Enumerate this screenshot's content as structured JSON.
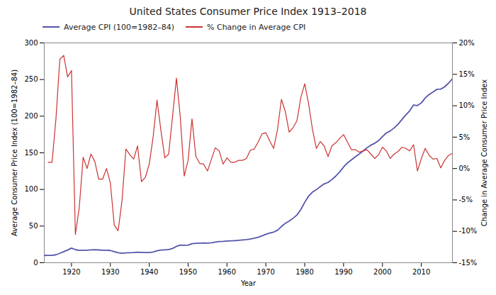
{
  "chart_data": {
    "type": "line",
    "title": "United States Consumer Price Index 1913–2018",
    "xlabel": "Year",
    "ylabel": "Average Consumer Price Index (100=1982–84)",
    "y2label": "Change in Average Consumer Price Index",
    "x": [
      1913,
      1914,
      1915,
      1916,
      1917,
      1918,
      1919,
      1920,
      1921,
      1922,
      1923,
      1924,
      1925,
      1926,
      1927,
      1928,
      1929,
      1930,
      1931,
      1932,
      1933,
      1934,
      1935,
      1936,
      1937,
      1938,
      1939,
      1940,
      1941,
      1942,
      1943,
      1944,
      1945,
      1946,
      1947,
      1948,
      1949,
      1950,
      1951,
      1952,
      1953,
      1954,
      1955,
      1956,
      1957,
      1958,
      1959,
      1960,
      1961,
      1962,
      1963,
      1964,
      1965,
      1966,
      1967,
      1968,
      1969,
      1970,
      1971,
      1972,
      1973,
      1974,
      1975,
      1976,
      1977,
      1978,
      1979,
      1980,
      1981,
      1982,
      1983,
      1984,
      1985,
      1986,
      1987,
      1988,
      1989,
      1990,
      1991,
      1992,
      1993,
      1994,
      1995,
      1996,
      1997,
      1998,
      1999,
      2000,
      2001,
      2002,
      2003,
      2004,
      2005,
      2006,
      2007,
      2008,
      2009,
      2010,
      2011,
      2012,
      2013,
      2014,
      2015,
      2016,
      2017,
      2018
    ],
    "series": [
      {
        "name": "Average CPI (100=1982–84)",
        "color": "#5555aa",
        "values": [
          9.9,
          10.0,
          10.1,
          10.9,
          12.8,
          15.1,
          17.3,
          20.0,
          17.9,
          16.8,
          17.1,
          17.1,
          17.5,
          17.7,
          17.4,
          17.1,
          17.1,
          16.7,
          15.2,
          13.7,
          13.0,
          13.4,
          13.7,
          13.9,
          14.4,
          14.1,
          13.9,
          14.0,
          14.7,
          16.3,
          17.3,
          17.6,
          18.0,
          19.5,
          22.3,
          24.1,
          23.8,
          24.1,
          26.0,
          26.5,
          26.7,
          26.9,
          26.8,
          27.2,
          28.1,
          28.9,
          29.1,
          29.6,
          29.9,
          30.2,
          30.6,
          31.0,
          31.5,
          32.4,
          33.4,
          34.8,
          36.7,
          38.8,
          40.5,
          41.8,
          44.4,
          49.3,
          53.8,
          56.9,
          60.6,
          65.2,
          72.6,
          82.4,
          90.9,
          96.5,
          99.6,
          103.9,
          107.6,
          109.6,
          113.6,
          118.3,
          124.0,
          130.7,
          136.2,
          140.3,
          144.5,
          148.2,
          152.4,
          156.9,
          160.5,
          163.0,
          166.6,
          172.2,
          177.1,
          179.9,
          184.0,
          188.9,
          195.3,
          201.6,
          207.3,
          215.3,
          214.5,
          218.1,
          224.9,
          229.6,
          232.9,
          236.7,
          237.0,
          240.0,
          245.1,
          251.1
        ]
      },
      {
        "name": "% Change in Average CPI",
        "color": "#cc3333",
        "axis": "y2",
        "values": [
          null,
          1.0,
          1.0,
          7.9,
          17.4,
          18.0,
          14.6,
          15.6,
          -10.5,
          -6.2,
          1.8,
          0.0,
          2.3,
          1.1,
          -1.7,
          -1.7,
          0.0,
          -2.3,
          -9.0,
          -9.9,
          -5.1,
          3.1,
          2.2,
          1.5,
          3.6,
          -2.1,
          -1.4,
          0.7,
          5.0,
          10.9,
          6.1,
          1.7,
          2.3,
          8.3,
          14.4,
          8.1,
          -1.2,
          1.3,
          7.9,
          1.9,
          0.8,
          0.7,
          -0.4,
          1.5,
          3.3,
          2.8,
          0.7,
          1.7,
          1.0,
          1.0,
          1.3,
          1.3,
          1.6,
          2.9,
          3.1,
          4.2,
          5.5,
          5.7,
          4.4,
          3.2,
          6.2,
          11.0,
          9.1,
          5.8,
          6.5,
          7.6,
          11.3,
          13.5,
          10.3,
          6.2,
          3.2,
          4.3,
          3.6,
          1.9,
          3.6,
          4.1,
          4.8,
          5.4,
          4.2,
          3.0,
          3.0,
          2.6,
          2.8,
          3.0,
          2.3,
          1.6,
          2.2,
          3.4,
          2.8,
          1.6,
          2.3,
          2.7,
          3.4,
          3.2,
          2.8,
          3.8,
          -0.4,
          1.6,
          3.2,
          2.1,
          1.5,
          1.6,
          0.1,
          1.3,
          2.1,
          2.4
        ]
      }
    ],
    "xlim": [
      1913,
      2018
    ],
    "xticks": [
      1920,
      1930,
      1940,
      1950,
      1960,
      1970,
      1980,
      1990,
      2000,
      2010
    ],
    "ylim": [
      0,
      300
    ],
    "yticks": [
      0,
      50,
      100,
      150,
      200,
      250,
      300
    ],
    "y2lim": [
      -15,
      20
    ],
    "y2ticks": [
      {
        "value": -15,
        "label": "-15%"
      },
      {
        "value": -10,
        "label": "-10%"
      },
      {
        "value": -5,
        "label": "-5%"
      },
      {
        "value": 0,
        "label": "0%"
      },
      {
        "value": 5,
        "label": "5%"
      },
      {
        "value": 10,
        "label": "10%"
      },
      {
        "value": 15,
        "label": "15%"
      },
      {
        "value": 20,
        "label": "20%"
      }
    ],
    "legend": "upper left",
    "grid": false
  }
}
